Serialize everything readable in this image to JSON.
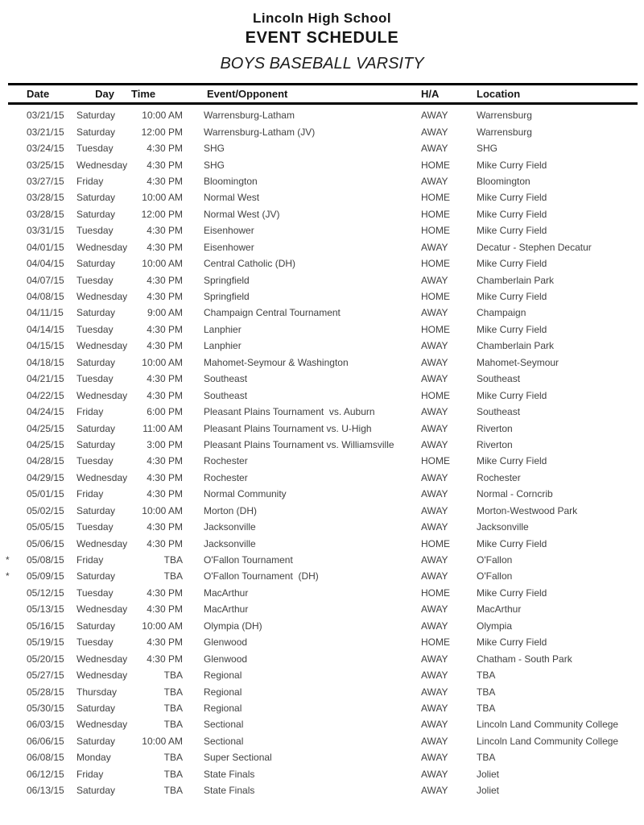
{
  "header": {
    "school": "Lincoln High School",
    "title": "EVENT SCHEDULE",
    "subtitle": "BOYS BASEBALL VARSITY"
  },
  "table": {
    "columns": [
      "Date",
      "Day",
      "Time",
      "Event/Opponent",
      "H/A",
      "Location"
    ],
    "rows": [
      {
        "flag": "",
        "date": "03/21/15",
        "day": "Saturday",
        "time": "10:00 AM",
        "event": "Warrensburg-Latham",
        "ha": "AWAY",
        "location": "Warrensburg"
      },
      {
        "flag": "",
        "date": "03/21/15",
        "day": "Saturday",
        "time": "12:00 PM",
        "event": "Warrensburg-Latham (JV)",
        "ha": "AWAY",
        "location": "Warrensburg"
      },
      {
        "flag": "",
        "date": "03/24/15",
        "day": "Tuesday",
        "time": "4:30 PM",
        "event": "SHG",
        "ha": "AWAY",
        "location": "SHG"
      },
      {
        "flag": "",
        "date": "03/25/15",
        "day": "Wednesday",
        "time": "4:30 PM",
        "event": "SHG",
        "ha": "HOME",
        "location": "Mike Curry Field"
      },
      {
        "flag": "",
        "date": "03/27/15",
        "day": "Friday",
        "time": "4:30 PM",
        "event": "Bloomington",
        "ha": "AWAY",
        "location": "Bloomington"
      },
      {
        "flag": "",
        "date": "03/28/15",
        "day": "Saturday",
        "time": "10:00 AM",
        "event": "Normal West",
        "ha": "HOME",
        "location": "Mike Curry Field"
      },
      {
        "flag": "",
        "date": "03/28/15",
        "day": "Saturday",
        "time": "12:00 PM",
        "event": "Normal West (JV)",
        "ha": "HOME",
        "location": "Mike Curry Field"
      },
      {
        "flag": "",
        "date": "03/31/15",
        "day": "Tuesday",
        "time": "4:30 PM",
        "event": "Eisenhower",
        "ha": "HOME",
        "location": "Mike Curry Field"
      },
      {
        "flag": "",
        "date": "04/01/15",
        "day": "Wednesday",
        "time": "4:30 PM",
        "event": "Eisenhower",
        "ha": "AWAY",
        "location": "Decatur - Stephen Decatur"
      },
      {
        "flag": "",
        "date": "04/04/15",
        "day": "Saturday",
        "time": "10:00 AM",
        "event": "Central Catholic (DH)",
        "ha": "HOME",
        "location": "Mike Curry Field"
      },
      {
        "flag": "",
        "date": "04/07/15",
        "day": "Tuesday",
        "time": "4:30 PM",
        "event": "Springfield",
        "ha": "AWAY",
        "location": "Chamberlain Park"
      },
      {
        "flag": "",
        "date": "04/08/15",
        "day": "Wednesday",
        "time": "4:30 PM",
        "event": "Springfield",
        "ha": "HOME",
        "location": "Mike Curry Field"
      },
      {
        "flag": "",
        "date": "04/11/15",
        "day": "Saturday",
        "time": "9:00 AM",
        "event": "Champaign Central Tournament",
        "ha": "AWAY",
        "location": "Champaign"
      },
      {
        "flag": "",
        "date": "04/14/15",
        "day": "Tuesday",
        "time": "4:30 PM",
        "event": "Lanphier",
        "ha": "HOME",
        "location": "Mike Curry Field"
      },
      {
        "flag": "",
        "date": "04/15/15",
        "day": "Wednesday",
        "time": "4:30 PM",
        "event": "Lanphier",
        "ha": "AWAY",
        "location": "Chamberlain Park"
      },
      {
        "flag": "",
        "date": "04/18/15",
        "day": "Saturday",
        "time": "10:00 AM",
        "event": "Mahomet-Seymour & Washington",
        "ha": "AWAY",
        "location": "Mahomet-Seymour"
      },
      {
        "flag": "",
        "date": "04/21/15",
        "day": "Tuesday",
        "time": "4:30 PM",
        "event": "Southeast",
        "ha": "AWAY",
        "location": "Southeast"
      },
      {
        "flag": "",
        "date": "04/22/15",
        "day": "Wednesday",
        "time": "4:30 PM",
        "event": "Southeast",
        "ha": "HOME",
        "location": "Mike Curry Field"
      },
      {
        "flag": "",
        "date": "04/24/15",
        "day": "Friday",
        "time": "6:00 PM",
        "event": "Pleasant Plains Tournament  vs. Auburn",
        "ha": "AWAY",
        "location": "Southeast"
      },
      {
        "flag": "",
        "date": "04/25/15",
        "day": "Saturday",
        "time": "11:00 AM",
        "event": "Pleasant Plains Tournament vs. U-High",
        "ha": "AWAY",
        "location": "Riverton"
      },
      {
        "flag": "",
        "date": "04/25/15",
        "day": "Saturday",
        "time": "3:00 PM",
        "event": "Pleasant Plains Tournament vs. Williamsville",
        "ha": "AWAY",
        "location": "Riverton"
      },
      {
        "flag": "",
        "date": "04/28/15",
        "day": "Tuesday",
        "time": "4:30 PM",
        "event": "Rochester",
        "ha": "HOME",
        "location": "Mike Curry Field"
      },
      {
        "flag": "",
        "date": "04/29/15",
        "day": "Wednesday",
        "time": "4:30 PM",
        "event": "Rochester",
        "ha": "AWAY",
        "location": "Rochester"
      },
      {
        "flag": "",
        "date": "05/01/15",
        "day": "Friday",
        "time": "4:30 PM",
        "event": "Normal Community",
        "ha": "AWAY",
        "location": "Normal - Corncrib"
      },
      {
        "flag": "",
        "date": "05/02/15",
        "day": "Saturday",
        "time": "10:00 AM",
        "event": "Morton (DH)",
        "ha": "AWAY",
        "location": "Morton-Westwood Park"
      },
      {
        "flag": "",
        "date": "05/05/15",
        "day": "Tuesday",
        "time": "4:30 PM",
        "event": "Jacksonville",
        "ha": "AWAY",
        "location": "Jacksonville"
      },
      {
        "flag": "",
        "date": "05/06/15",
        "day": "Wednesday",
        "time": "4:30 PM",
        "event": "Jacksonville",
        "ha": "HOME",
        "location": "Mike Curry Field"
      },
      {
        "flag": "*",
        "date": "05/08/15",
        "day": "Friday",
        "time": "TBA",
        "event": "O'Fallon Tournament",
        "ha": "AWAY",
        "location": "O'Fallon"
      },
      {
        "flag": "*",
        "date": "05/09/15",
        "day": "Saturday",
        "time": "TBA",
        "event": "O'Fallon Tournament  (DH)",
        "ha": "AWAY",
        "location": "O'Fallon"
      },
      {
        "flag": "",
        "date": "05/12/15",
        "day": "Tuesday",
        "time": "4:30 PM",
        "event": "MacArthur",
        "ha": "HOME",
        "location": "Mike Curry Field"
      },
      {
        "flag": "",
        "date": "05/13/15",
        "day": "Wednesday",
        "time": "4:30 PM",
        "event": "MacArthur",
        "ha": "AWAY",
        "location": "MacArthur"
      },
      {
        "flag": "",
        "date": "05/16/15",
        "day": "Saturday",
        "time": "10:00 AM",
        "event": "Olympia (DH)",
        "ha": "AWAY",
        "location": "Olympia"
      },
      {
        "flag": "",
        "date": "05/19/15",
        "day": "Tuesday",
        "time": "4:30 PM",
        "event": "Glenwood",
        "ha": "HOME",
        "location": "Mike Curry Field"
      },
      {
        "flag": "",
        "date": "05/20/15",
        "day": "Wednesday",
        "time": "4:30 PM",
        "event": "Glenwood",
        "ha": "AWAY",
        "location": "Chatham - South Park"
      },
      {
        "flag": "",
        "date": "05/27/15",
        "day": "Wednesday",
        "time": "TBA",
        "event": "Regional",
        "ha": "AWAY",
        "location": "TBA"
      },
      {
        "flag": "",
        "date": "05/28/15",
        "day": "Thursday",
        "time": "TBA",
        "event": "Regional",
        "ha": "AWAY",
        "location": "TBA"
      },
      {
        "flag": "",
        "date": "05/30/15",
        "day": "Saturday",
        "time": "TBA",
        "event": "Regional",
        "ha": "AWAY",
        "location": "TBA"
      },
      {
        "flag": "",
        "date": "06/03/15",
        "day": "Wednesday",
        "time": "TBA",
        "event": "Sectional",
        "ha": "AWAY",
        "location": "Lincoln Land Community College"
      },
      {
        "flag": "",
        "date": "06/06/15",
        "day": "Saturday",
        "time": "10:00 AM",
        "event": "Sectional",
        "ha": "AWAY",
        "location": "Lincoln Land Community College"
      },
      {
        "flag": "",
        "date": "06/08/15",
        "day": "Monday",
        "time": "TBA",
        "event": "Super Sectional",
        "ha": "AWAY",
        "location": "TBA"
      },
      {
        "flag": "",
        "date": "06/12/15",
        "day": "Friday",
        "time": "TBA",
        "event": "State Finals",
        "ha": "AWAY",
        "location": "Joliet"
      },
      {
        "flag": "",
        "date": "06/13/15",
        "day": "Saturday",
        "time": "TBA",
        "event": "State Finals",
        "ha": "AWAY",
        "location": "Joliet"
      }
    ]
  },
  "colors": {
    "background": "#ffffff",
    "body_text": "#414141",
    "heading_text": "#151515",
    "rule": "#000000"
  }
}
